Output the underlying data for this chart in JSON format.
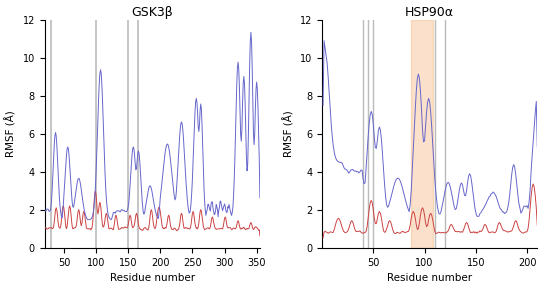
{
  "gsk3b_title": "GSK3β",
  "hsp90a_title": "HSP90α",
  "xlabel": "Residue number",
  "ylabel": "RMSF (Å)",
  "gsk3b_xlim": [
    20,
    355
  ],
  "gsk3b_ylim": [
    0,
    12
  ],
  "hsp90a_xlim": [
    0,
    210
  ],
  "hsp90a_ylim": [
    0,
    12
  ],
  "gsk3b_xticks": [
    50,
    100,
    150,
    200,
    250,
    300,
    350
  ],
  "hsp90a_xticks": [
    50,
    100,
    150,
    200
  ],
  "yticks": [
    0,
    2,
    4,
    6,
    8,
    10,
    12
  ],
  "gsk3b_gray_lines": [
    30,
    100,
    150,
    165
  ],
  "hsp90a_gray_lines": [
    40,
    45,
    50,
    110,
    120
  ],
  "hsp90a_orange_band": [
    87,
    108
  ],
  "blue_color": "#6666cc",
  "red_color": "#cc4444",
  "gray_line_color": "#bbbbbb",
  "background_color": "#ffffff",
  "title_fontsize": 9,
  "axis_fontsize": 7.5,
  "tick_fontsize": 7
}
